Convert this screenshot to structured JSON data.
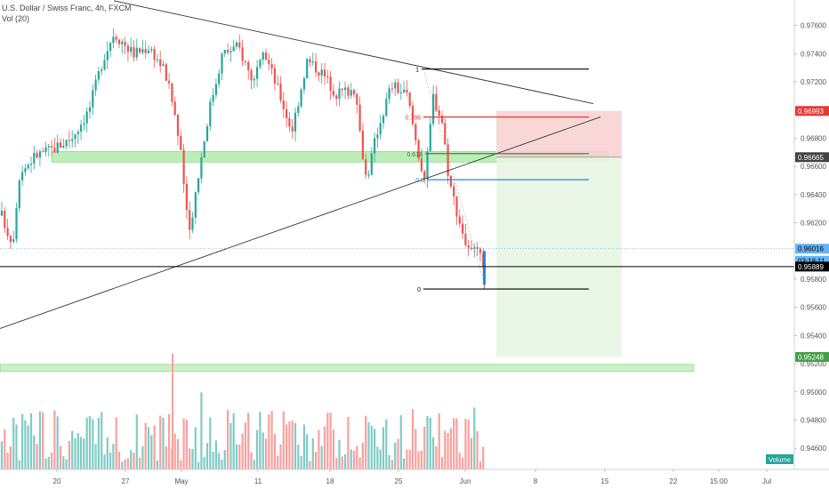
{
  "header": {
    "symbol_line": "U.S. Dollar / Swiss Franc, 4h, FXCM",
    "indicator_line": "Vol (20)"
  },
  "colors": {
    "up": "#26a69a",
    "down": "#ef5350",
    "vol_up": "#80cbc4",
    "vol_down": "#f7a19e",
    "zone_green": "#a5e8a0",
    "target_zone": "#e8f5e3",
    "stop_zone": "#f9d0d0",
    "trendline": "#333333",
    "fib_red": "#e53935",
    "fib_green": "#2e7d32",
    "fib_blue": "#1e88e5",
    "last_price_line": "#42a5f5"
  },
  "chart_data": {
    "type": "candlestick",
    "series": [
      {
        "name": "U.S. Dollar / Swiss Franc, 4h, FXCM",
        "kind": "ohlc"
      },
      {
        "name": "Vol (20)",
        "kind": "volume"
      }
    ],
    "price_axis": {
      "ticks": [
        "0.97600",
        "0.97400",
        "0.97200",
        "0.96800",
        "0.96600",
        "0.96400",
        "0.96200",
        "0.95800",
        "0.95600",
        "0.95400",
        "0.95200",
        "0.95000",
        "0.94800",
        "0.94600"
      ],
      "ylim": [
        0.9445,
        0.9778
      ]
    },
    "time_axis": {
      "ticks": [
        "20",
        "27",
        "May",
        "11",
        "18",
        "25",
        "Jun",
        "8",
        "15",
        "22",
        "15:00",
        "Jul"
      ]
    },
    "price_labels": [
      {
        "value": 0.96993,
        "text": "0.96993",
        "bg": "#e53935",
        "fg": "#ffffff"
      },
      {
        "value": 0.96665,
        "text": "0.96665",
        "bg": "#424242",
        "fg": "#ffffff"
      },
      {
        "value": 0.96016,
        "text": "0.96016",
        "bg": "#64b5f6",
        "fg": "#000000"
      },
      {
        "value": 0.9593,
        "text": "03:18:11",
        "bg": "#64b5f6",
        "fg": "#000000"
      },
      {
        "value": 0.95889,
        "text": "0.95889",
        "bg": "#000000",
        "fg": "#ffffff"
      },
      {
        "value": 0.95248,
        "text": "0.95248",
        "bg": "#43a047",
        "fg": "#ffffff"
      }
    ],
    "fibonacci": [
      {
        "label": "1",
        "value": 0.9729,
        "color": "#000000"
      },
      {
        "label": "0.786",
        "value": 0.9695,
        "color": "#e53935"
      },
      {
        "label": "0.618",
        "value": 0.9669,
        "color": "#2e7d32"
      },
      {
        "label": "0.5",
        "value": 0.96505,
        "color": "#1e88e5"
      },
      {
        "label": "0",
        "value": 0.9573,
        "color": "#000000"
      }
    ],
    "horizontal_levels": [
      {
        "value": 0.95889,
        "color": "#000000"
      },
      {
        "value": 0.96016,
        "color": "#42a5f5",
        "dashed": true
      }
    ],
    "zones": [
      {
        "top": 0.96705,
        "bottom": 0.9663
      },
      {
        "top": 0.95195,
        "bottom": 0.95145
      }
    ],
    "position": {
      "entry": 0.96665,
      "stop": 0.96993,
      "target": 0.95248
    },
    "volume_badge": "Volume",
    "grid": false
  }
}
